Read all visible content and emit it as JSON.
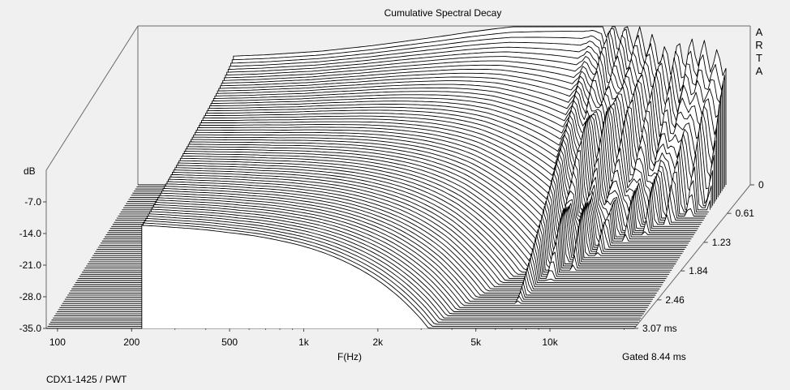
{
  "chart_data": {
    "type": "waterfall",
    "title": "Cumulative Spectral Decay",
    "watermark": "ARTA",
    "xlabel": "F(Hz)",
    "ylabel": "dB",
    "x_ticks": [
      {
        "value": 100,
        "label": "100"
      },
      {
        "value": 200,
        "label": "200"
      },
      {
        "value": 500,
        "label": "500"
      },
      {
        "value": 1000,
        "label": "1k"
      },
      {
        "value": 2000,
        "label": "2k"
      },
      {
        "value": 5000,
        "label": "5k"
      },
      {
        "value": 10000,
        "label": "10k"
      }
    ],
    "y_ticks": [
      {
        "value": -7,
        "label": "-7.0"
      },
      {
        "value": -14,
        "label": "-14.0"
      },
      {
        "value": -21,
        "label": "-21.0"
      },
      {
        "value": -28,
        "label": "-28.0"
      },
      {
        "value": -35,
        "label": "-35.0"
      }
    ],
    "z_ticks": [
      {
        "value": 0,
        "label": "0"
      },
      {
        "value": 0.61,
        "label": "0.61"
      },
      {
        "value": 1.23,
        "label": "1.23"
      },
      {
        "value": 1.84,
        "label": "1.84"
      },
      {
        "value": 2.46,
        "label": "2.46"
      },
      {
        "value": 3.07,
        "label": "3.07 ms"
      }
    ],
    "x_range": [
      90,
      22000
    ],
    "y_range": [
      -35,
      0
    ],
    "time_range_ms": [
      0,
      3.07
    ],
    "slices": 70,
    "gate": "Gated 8.44 ms",
    "footer": "CDX1-1425 / PWT",
    "response_profile": {
      "freq": [
        220,
        300,
        500,
        800,
        1000,
        1500,
        2000,
        2500,
        3000,
        4000,
        5000,
        6000,
        6500,
        7000,
        8000,
        9000,
        10000,
        11000,
        12000,
        13000,
        14000,
        15000,
        16000,
        18000,
        20000
      ],
      "level_db": [
        -6.5,
        -6.2,
        -5.4,
        -4.2,
        -3.5,
        -2.2,
        -1.2,
        -0.5,
        0.0,
        0.3,
        0.5,
        0.6,
        0.4,
        0.1,
        -0.8,
        -1.8,
        -3.0,
        -4.5,
        -6.0,
        -8.5,
        -6.0,
        -6.5,
        -5.5,
        -6.0,
        -8.0
      ]
    }
  }
}
